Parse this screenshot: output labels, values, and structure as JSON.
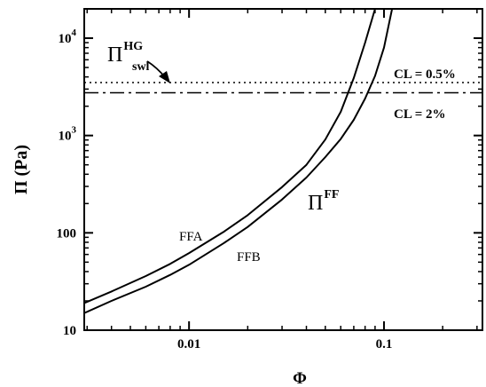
{
  "chart_data": {
    "type": "line",
    "x_scale": "log",
    "y_scale": "log",
    "xlim": [
      0.0029,
      0.32
    ],
    "ylim": [
      10,
      20000
    ],
    "xlabel": "Φ",
    "ylabel": "Π (Pa)",
    "x_ticks": [
      {
        "value": 0.01,
        "label": "0.01"
      },
      {
        "value": 0.1,
        "label": "0.1"
      }
    ],
    "y_ticks": [
      {
        "value": 10,
        "label": "10",
        "kind": "plain"
      },
      {
        "value": 100,
        "label": "100",
        "kind": "plain"
      },
      {
        "value": 1000,
        "base": "10",
        "exp": "3",
        "kind": "power"
      },
      {
        "value": 10000,
        "base": "10",
        "exp": "4",
        "kind": "power"
      }
    ],
    "series": [
      {
        "name": "FFA",
        "style": "solid",
        "x": [
          0.0029,
          0.004,
          0.006,
          0.008,
          0.01,
          0.015,
          0.02,
          0.03,
          0.04,
          0.05,
          0.06,
          0.07,
          0.08,
          0.09
        ],
        "y": [
          19,
          25,
          36,
          48,
          62,
          102,
          152,
          295,
          500,
          910,
          1750,
          3900,
          9000,
          20000
        ]
      },
      {
        "name": "FFB",
        "style": "solid",
        "x": [
          0.0029,
          0.004,
          0.006,
          0.008,
          0.01,
          0.015,
          0.02,
          0.03,
          0.04,
          0.05,
          0.06,
          0.07,
          0.08,
          0.09,
          0.1,
          0.11
        ],
        "y": [
          15,
          20,
          28,
          37,
          47,
          78,
          115,
          220,
          370,
          600,
          920,
          1450,
          2400,
          4100,
          8000,
          20000
        ]
      },
      {
        "name": "CL = 0.5%",
        "style": "dotted",
        "x": [
          0.0029,
          0.32
        ],
        "y": [
          3500,
          3500
        ]
      },
      {
        "name": "CL = 2%",
        "style": "dashdot",
        "x": [
          0.0029,
          0.32
        ],
        "y": [
          2750,
          2750
        ]
      }
    ],
    "annotations": {
      "pi_hg": {
        "base": "Π",
        "sup": "HG",
        "sub": "swl"
      },
      "pi_ff": {
        "base": "Π",
        "sup": "FF"
      },
      "cl_05": "CL = 0.5%",
      "cl_2": "CL = 2%",
      "ffa": "FFA",
      "ffb": "FFB"
    },
    "grid": false,
    "legend": "none"
  }
}
